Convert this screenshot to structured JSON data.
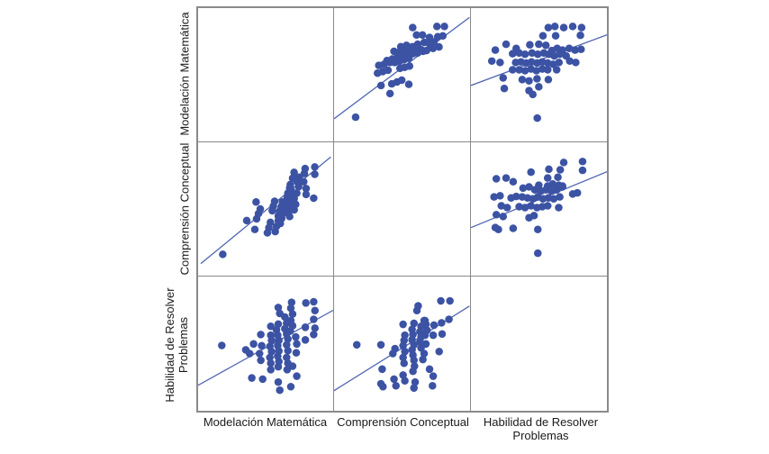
{
  "labels": {
    "rows": [
      {
        "lines": [
          "Modelación Matemática"
        ]
      },
      {
        "lines": [
          "Comprensión Conceptual"
        ]
      },
      {
        "lines": [
          "Habilidad de Resolver",
          "Problemas"
        ]
      }
    ],
    "cols": [
      {
        "lines": [
          "Modelación Matemática"
        ]
      },
      {
        "lines": [
          "Comprensión Conceptual"
        ]
      },
      {
        "lines": [
          "Habilidad de Resolver",
          "Problemas"
        ]
      }
    ]
  },
  "chart_data": {
    "type": "scatter",
    "subtype": "scatterplot_matrix",
    "title": "",
    "variables": [
      "Modelación Matemática",
      "Comprensión Conceptual",
      "Habilidad de Resolver Problemas"
    ],
    "grid": "3x3, diagonal cells empty, unit-normalized axes (no tick labels shown)",
    "legend": "none",
    "point_color": "#3C53A4",
    "line_color": "#4E65B2",
    "frame_color": "#8a8a8a",
    "background": "#ffffff",
    "pairs": {
      "mm_cc": [
        [
          0.76,
          0.862
        ],
        [
          0.815,
          0.862
        ],
        [
          0.581,
          0.854
        ],
        [
          0.609,
          0.798
        ],
        [
          0.653,
          0.798
        ],
        [
          0.705,
          0.78
        ],
        [
          0.766,
          0.785
        ],
        [
          0.803,
          0.791
        ],
        [
          0.618,
          0.729
        ],
        [
          0.666,
          0.743
        ],
        [
          0.705,
          0.732
        ],
        [
          0.738,
          0.747
        ],
        [
          0.493,
          0.71
        ],
        [
          0.535,
          0.721
        ],
        [
          0.579,
          0.71
        ],
        [
          0.443,
          0.676
        ],
        [
          0.482,
          0.67
        ],
        [
          0.526,
          0.681
        ],
        [
          0.565,
          0.687
        ],
        [
          0.607,
          0.676
        ],
        [
          0.644,
          0.687
        ],
        [
          0.683,
          0.681
        ],
        [
          0.731,
          0.698
        ],
        [
          0.775,
          0.709
        ],
        [
          0.391,
          0.607
        ],
        [
          0.43,
          0.618
        ],
        [
          0.469,
          0.632
        ],
        [
          0.509,
          0.64
        ],
        [
          0.544,
          0.652
        ],
        [
          0.583,
          0.658
        ],
        [
          0.618,
          0.663
        ],
        [
          0.657,
          0.676
        ],
        [
          0.33,
          0.57
        ],
        [
          0.369,
          0.579
        ],
        [
          0.413,
          0.592
        ],
        [
          0.448,
          0.592
        ],
        [
          0.483,
          0.601
        ],
        [
          0.518,
          0.614
        ],
        [
          0.552,
          0.623
        ],
        [
          0.321,
          0.512
        ],
        [
          0.36,
          0.523
        ],
        [
          0.399,
          0.534
        ],
        [
          0.487,
          0.548
        ],
        [
          0.522,
          0.556
        ],
        [
          0.557,
          0.565
        ],
        [
          0.347,
          0.419
        ],
        [
          0.426,
          0.432
        ],
        [
          0.465,
          0.446
        ],
        [
          0.5,
          0.459
        ],
        [
          0.552,
          0.428
        ],
        [
          0.413,
          0.359
        ],
        [
          0.159,
          0.182
        ]
      ],
      "mm_hr": [
        [
          0.568,
          0.854
        ],
        [
          0.616,
          0.863
        ],
        [
          0.681,
          0.854
        ],
        [
          0.747,
          0.863
        ],
        [
          0.812,
          0.854
        ],
        [
          0.528,
          0.792
        ],
        [
          0.622,
          0.792
        ],
        [
          0.803,
          0.796
        ],
        [
          0.258,
          0.729
        ],
        [
          0.332,
          0.698
        ],
        [
          0.432,
          0.725
        ],
        [
          0.498,
          0.729
        ],
        [
          0.55,
          0.721
        ],
        [
          0.594,
          0.681
        ],
        [
          0.633,
          0.698
        ],
        [
          0.672,
          0.685
        ],
        [
          0.721,
          0.698
        ],
        [
          0.764,
          0.685
        ],
        [
          0.808,
          0.691
        ],
        [
          0.179,
          0.685
        ],
        [
          0.306,
          0.658
        ],
        [
          0.354,
          0.663
        ],
        [
          0.397,
          0.654
        ],
        [
          0.448,
          0.663
        ],
        [
          0.491,
          0.654
        ],
        [
          0.535,
          0.663
        ],
        [
          0.572,
          0.654
        ],
        [
          0.611,
          0.641
        ],
        [
          0.651,
          0.654
        ],
        [
          0.699,
          0.641
        ],
        [
          0.153,
          0.603
        ],
        [
          0.214,
          0.592
        ],
        [
          0.328,
          0.592
        ],
        [
          0.367,
          0.597
        ],
        [
          0.406,
          0.588
        ],
        [
          0.445,
          0.597
        ],
        [
          0.485,
          0.588
        ],
        [
          0.524,
          0.597
        ],
        [
          0.563,
          0.588
        ],
        [
          0.603,
          0.579
        ],
        [
          0.646,
          0.592
        ],
        [
          0.725,
          0.603
        ],
        [
          0.769,
          0.592
        ],
        [
          0.306,
          0.537
        ],
        [
          0.354,
          0.537
        ],
        [
          0.397,
          0.53
        ],
        [
          0.441,
          0.543
        ],
        [
          0.48,
          0.53
        ],
        [
          0.524,
          0.543
        ],
        [
          0.563,
          0.537
        ],
        [
          0.629,
          0.537
        ],
        [
          0.236,
          0.477
        ],
        [
          0.376,
          0.463
        ],
        [
          0.426,
          0.454
        ],
        [
          0.485,
          0.47
        ],
        [
          0.568,
          0.463
        ],
        [
          0.245,
          0.397
        ],
        [
          0.426,
          0.381
        ],
        [
          0.454,
          0.352
        ],
        [
          0.498,
          0.41
        ],
        [
          0.487,
          0.175
        ]
      ],
      "cc_hr": [
        [
          0.681,
          0.849
        ],
        [
          0.819,
          0.856
        ],
        [
          0.572,
          0.798
        ],
        [
          0.655,
          0.794
        ],
        [
          0.819,
          0.789
        ],
        [
          0.441,
          0.776
        ],
        [
          0.186,
          0.727
        ],
        [
          0.258,
          0.732
        ],
        [
          0.563,
          0.732
        ],
        [
          0.638,
          0.738
        ],
        [
          0.31,
          0.705
        ],
        [
          0.498,
          0.678
        ],
        [
          0.563,
          0.672
        ],
        [
          0.6,
          0.687
        ],
        [
          0.644,
          0.678
        ],
        [
          0.672,
          0.672
        ],
        [
          0.382,
          0.656
        ],
        [
          0.426,
          0.665
        ],
        [
          0.469,
          0.643
        ],
        [
          0.513,
          0.634
        ],
        [
          0.55,
          0.643
        ],
        [
          0.59,
          0.634
        ],
        [
          0.629,
          0.643
        ],
        [
          0.672,
          0.665
        ],
        [
          0.747,
          0.612
        ],
        [
          0.781,
          0.621
        ],
        [
          0.17,
          0.59
        ],
        [
          0.214,
          0.599
        ],
        [
          0.295,
          0.583
        ],
        [
          0.332,
          0.594
        ],
        [
          0.376,
          0.59
        ],
        [
          0.415,
          0.583
        ],
        [
          0.454,
          0.576
        ],
        [
          0.491,
          0.59
        ],
        [
          0.528,
          0.576
        ],
        [
          0.568,
          0.583
        ],
        [
          0.607,
          0.576
        ],
        [
          0.651,
          0.59
        ],
        [
          0.223,
          0.523
        ],
        [
          0.266,
          0.51
        ],
        [
          0.354,
          0.517
        ],
        [
          0.397,
          0.51
        ],
        [
          0.441,
          0.523
        ],
        [
          0.485,
          0.51
        ],
        [
          0.524,
          0.517
        ],
        [
          0.563,
          0.523
        ],
        [
          0.644,
          0.51
        ],
        [
          0.186,
          0.457
        ],
        [
          0.236,
          0.443
        ],
        [
          0.426,
          0.434
        ],
        [
          0.463,
          0.45
        ],
        [
          0.179,
          0.361
        ],
        [
          0.201,
          0.346
        ],
        [
          0.31,
          0.355
        ],
        [
          0.491,
          0.346
        ],
        [
          0.491,
          0.168
        ]
      ]
    },
    "panels": [
      {
        "row": 0,
        "col": 1,
        "y_var": "Modelación Matemática",
        "x_var": "Comprensión Conceptual",
        "pair": "mm_cc",
        "transpose": false,
        "line": [
          0.0,
          0.17,
          1.0,
          0.93
        ]
      },
      {
        "row": 0,
        "col": 2,
        "y_var": "Modelación Matemática",
        "x_var": "Habilidad de Resolver Problemas",
        "pair": "mm_hr",
        "transpose": false,
        "line": [
          0.0,
          0.42,
          1.0,
          0.8
        ]
      },
      {
        "row": 1,
        "col": 0,
        "y_var": "Comprensión Conceptual",
        "x_var": "Modelación Matemática",
        "pair": "mm_cc",
        "transpose": true,
        "line": [
          0.02,
          0.09,
          0.98,
          0.89
        ]
      },
      {
        "row": 1,
        "col": 2,
        "y_var": "Comprensión Conceptual",
        "x_var": "Habilidad de Resolver Problemas",
        "pair": "cc_hr",
        "transpose": false,
        "line": [
          0.0,
          0.36,
          1.0,
          0.78
        ]
      },
      {
        "row": 2,
        "col": 0,
        "y_var": "Habilidad de Resolver Problemas",
        "x_var": "Modelación Matemática",
        "pair": "mm_hr",
        "transpose": true,
        "line": [
          0.0,
          0.19,
          1.0,
          0.75
        ]
      },
      {
        "row": 2,
        "col": 1,
        "y_var": "Habilidad de Resolver Problemas",
        "x_var": "Comprensión Conceptual",
        "pair": "cc_hr",
        "transpose": true,
        "line": [
          0.0,
          0.15,
          1.0,
          0.78
        ]
      }
    ]
  }
}
